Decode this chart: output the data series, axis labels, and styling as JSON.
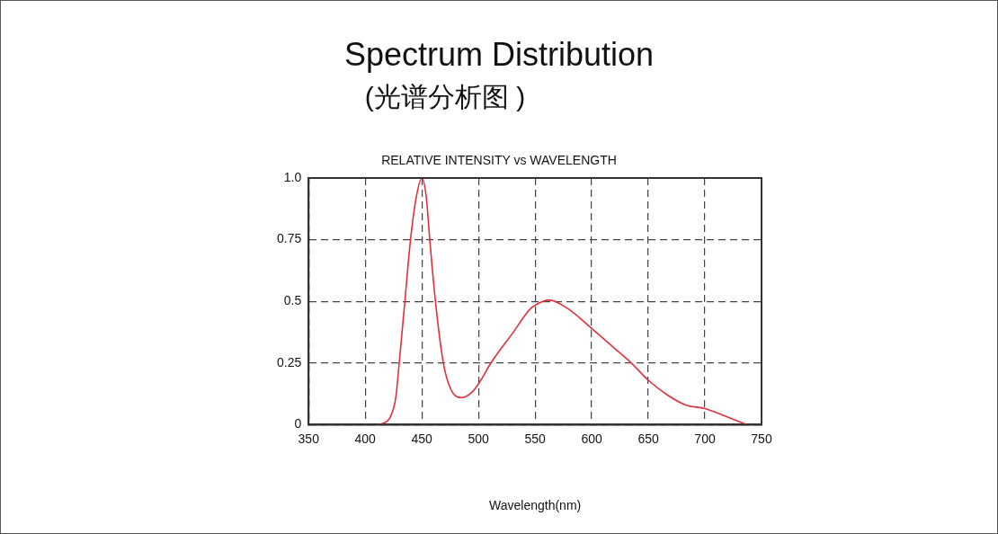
{
  "chart_data": {
    "type": "line",
    "title": "Spectrum Distribution",
    "subtitle": "(光谱分析图 )",
    "xlabel": "Wavelength(nm)",
    "annotations": [
      "RELATIVE INTENSITY vs WAVELENGTH"
    ],
    "series": [
      {
        "color": "#e0303c",
        "x": [
          413,
          422,
          427,
          430,
          435,
          440,
          445,
          450,
          454,
          457,
          462,
          469,
          476,
          485,
          495,
          502,
          511,
          530,
          546,
          557,
          563,
          579,
          600,
          620,
          635,
          650,
          667,
          683,
          700,
          715,
          737
        ],
        "values": [
          0,
          0.03,
          0.11,
          0.25,
          0.5,
          0.75,
          0.92,
          1.0,
          0.92,
          0.75,
          0.5,
          0.25,
          0.14,
          0.11,
          0.135,
          0.18,
          0.25,
          0.37,
          0.47,
          0.5,
          0.505,
          0.47,
          0.39,
          0.31,
          0.25,
          0.18,
          0.12,
          0.08,
          0.065,
          0.04,
          0
        ]
      }
    ],
    "xlim": [
      350,
      750
    ],
    "xticks": [
      350,
      400,
      450,
      500,
      550,
      600,
      650,
      700,
      750
    ],
    "ylim": [
      0,
      1
    ],
    "yticks": [
      0,
      0.25,
      0.5,
      0.75,
      {
        "value": 1,
        "label": "1.0"
      }
    ],
    "grid": true,
    "legend": false,
    "marker": "none",
    "line_style": "solid"
  }
}
